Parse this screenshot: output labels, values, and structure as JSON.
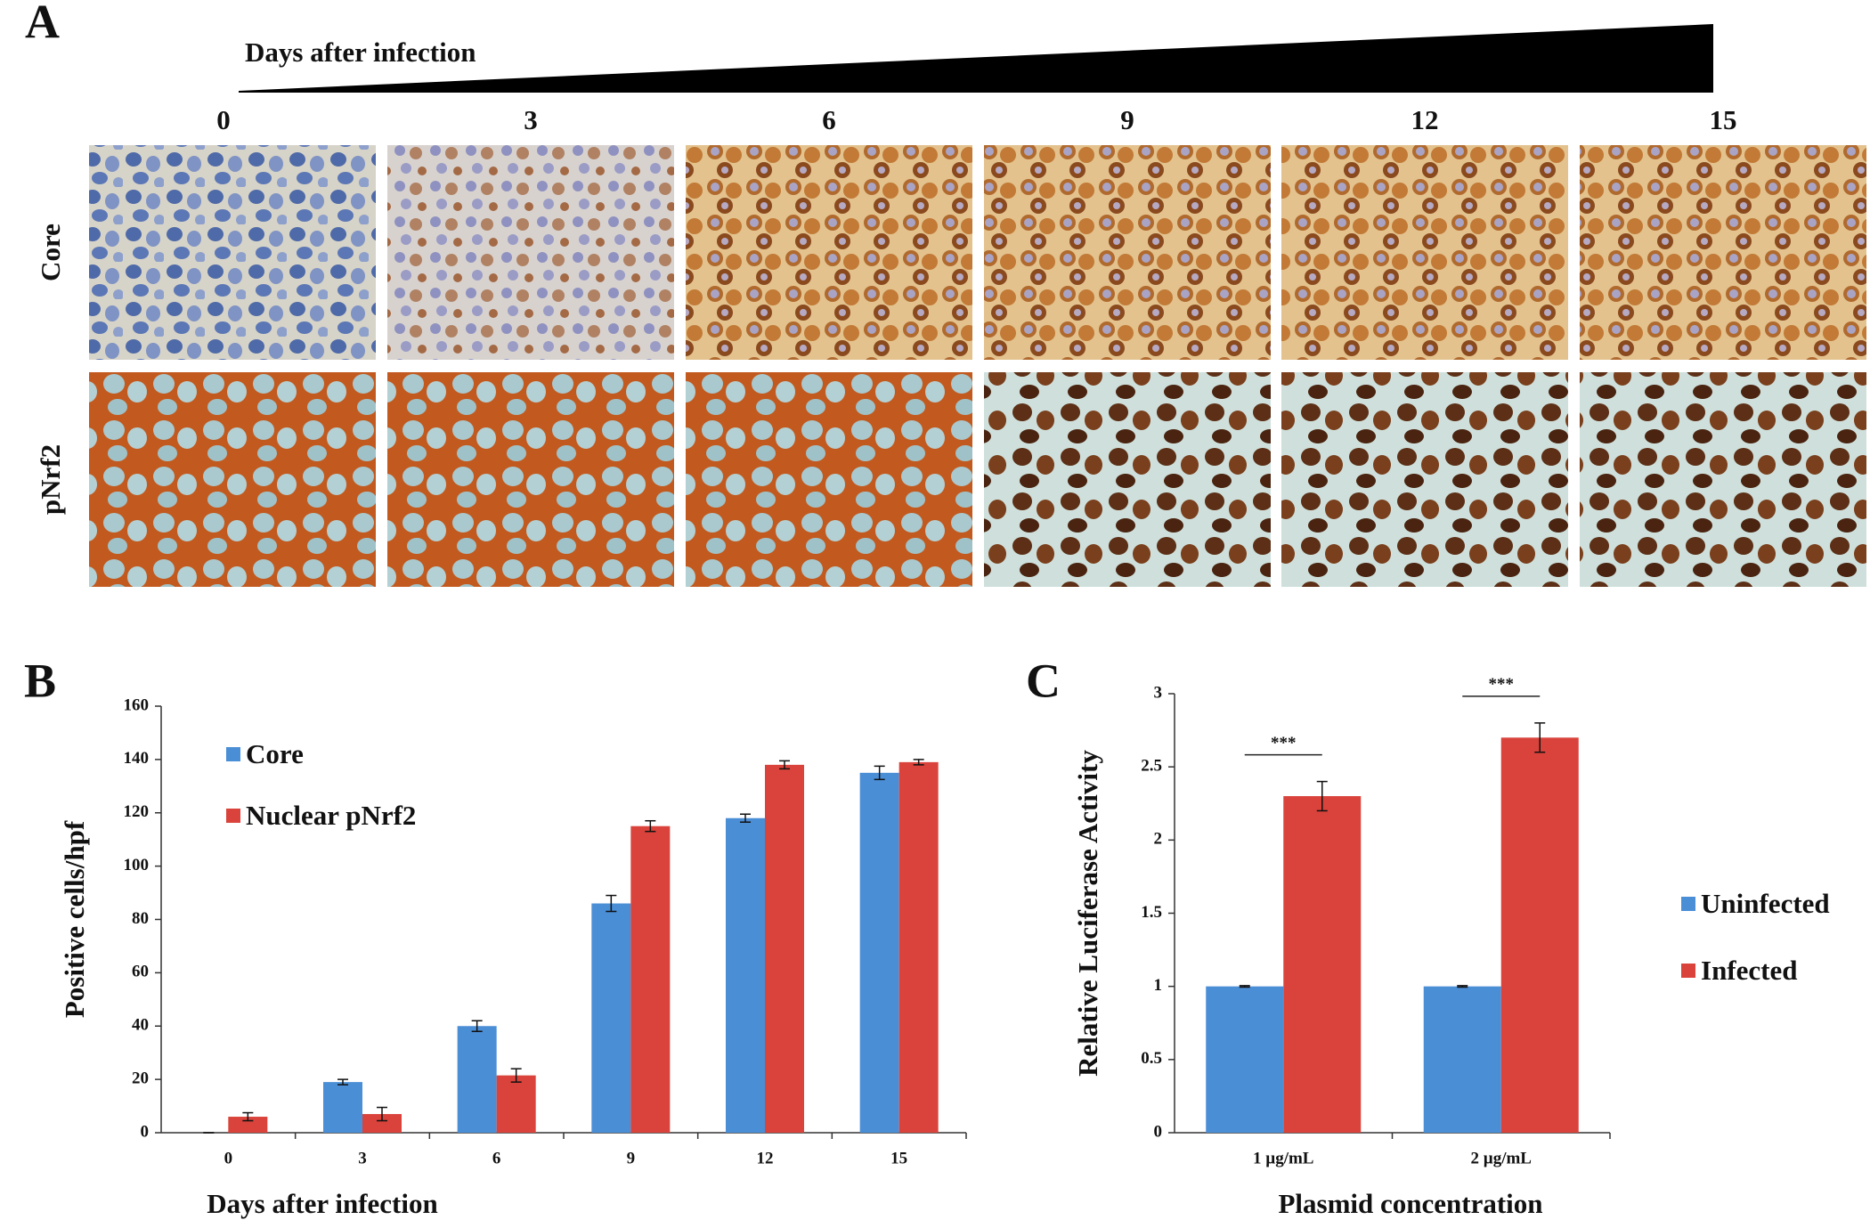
{
  "panel_a": {
    "label": "A",
    "title": "Days after infection",
    "days": [
      "0",
      "3",
      "6",
      "9",
      "12",
      "15"
    ],
    "rows": [
      "Core",
      "pNrf2"
    ]
  },
  "chart_data": [
    {
      "type": "bar",
      "panel_label": "B",
      "x_label": "Days after infection",
      "y_label": "Positive cells/hpf",
      "categories": [
        "0",
        "3",
        "6",
        "9",
        "12",
        "15"
      ],
      "series": [
        {
          "name": "Core",
          "color": "#4a8ed6",
          "values": [
            0,
            19,
            40,
            86,
            118,
            135
          ],
          "errors": [
            0,
            1,
            2,
            3,
            1.5,
            2.5
          ]
        },
        {
          "name": "Nuclear pNrf2",
          "color": "#d9433b",
          "values": [
            6,
            7,
            21.5,
            115,
            138,
            139
          ],
          "errors": [
            1.5,
            2.5,
            2.5,
            2,
            1.5,
            1
          ]
        }
      ],
      "ylim": [
        0,
        160
      ],
      "yticks": [
        0,
        20,
        40,
        60,
        80,
        100,
        120,
        140,
        160
      ],
      "legend": "upper left"
    },
    {
      "type": "bar",
      "panel_label": "C",
      "x_label": "Plasmid concentration",
      "y_label": "Relative Luciferase Activity",
      "categories": [
        "1 µg/mL",
        "2 µg/mL"
      ],
      "series": [
        {
          "name": "Uninfected",
          "color": "#4a8ed6",
          "values": [
            1,
            1
          ],
          "errors": [
            0.005,
            0.005
          ]
        },
        {
          "name": "Infected",
          "color": "#d9433b",
          "values": [
            2.3,
            2.7
          ],
          "errors": [
            0.1,
            0.1
          ]
        }
      ],
      "annotations": [
        "***",
        "***"
      ],
      "ylim": [
        0,
        3
      ],
      "yticks": [
        0,
        0.5,
        1,
        1.5,
        2,
        2.5,
        3
      ],
      "legend": "right"
    }
  ]
}
